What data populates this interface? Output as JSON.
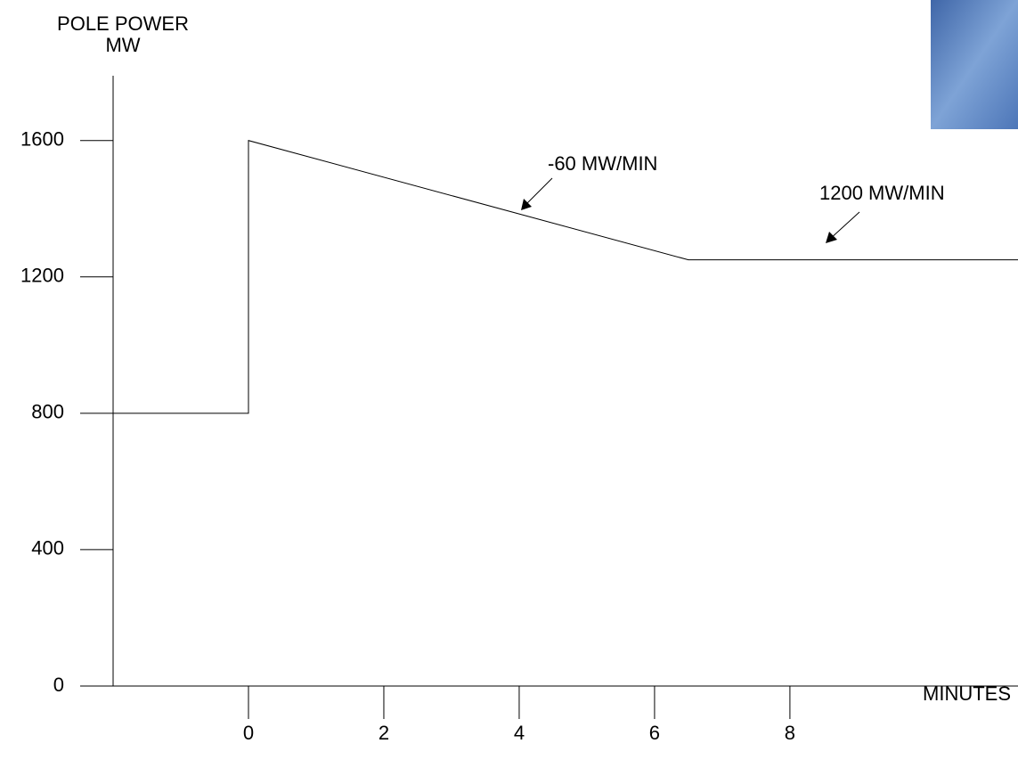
{
  "chart_data": {
    "type": "line",
    "ylabel": [
      "POLE POWER",
      "MW"
    ],
    "xlabel": "MINUTES",
    "x": [
      -2,
      0,
      0,
      6.5,
      11.37
    ],
    "values": [
      800,
      800,
      1600,
      1250,
      1250
    ],
    "color": "#000000",
    "xlim": [
      -2,
      11.37
    ],
    "xticks": [
      0,
      2,
      4,
      6,
      8
    ],
    "ylim": [
      0,
      1790
    ],
    "yticks": [
      0,
      400,
      800,
      1200,
      1600
    ],
    "annotations": [
      "-60 MW/MIN",
      "1200 MW/MIN"
    ]
  }
}
